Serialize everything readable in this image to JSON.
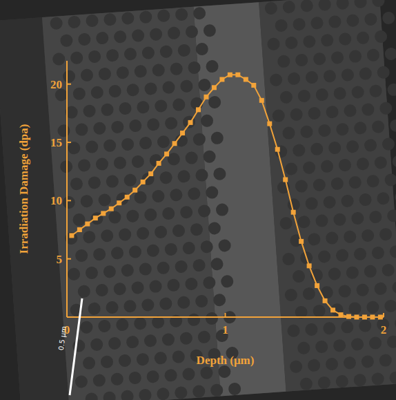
{
  "chart_data": {
    "type": "line",
    "x_label": "Depth (μm)",
    "y_label": "Irradiation Damage (dpa)",
    "annotations": [
      "0.5 μm"
    ],
    "x": [
      0.03,
      0.08,
      0.13,
      0.18,
      0.23,
      0.28,
      0.33,
      0.38,
      0.43,
      0.48,
      0.53,
      0.58,
      0.63,
      0.68,
      0.73,
      0.78,
      0.83,
      0.88,
      0.93,
      0.98,
      1.03,
      1.08,
      1.13,
      1.18,
      1.23,
      1.28,
      1.33,
      1.38,
      1.43,
      1.48,
      1.53,
      1.58,
      1.63,
      1.68,
      1.73,
      1.78,
      1.83,
      1.88,
      1.93,
      1.98
    ],
    "values": [
      7.0,
      7.5,
      8.0,
      8.5,
      8.9,
      9.3,
      9.8,
      10.3,
      10.9,
      11.6,
      12.3,
      13.2,
      14.0,
      14.9,
      15.8,
      16.7,
      17.8,
      18.9,
      19.7,
      20.4,
      20.8,
      20.8,
      20.4,
      19.9,
      18.6,
      16.6,
      14.4,
      11.8,
      9.0,
      6.5,
      4.4,
      2.7,
      1.4,
      0.6,
      0.2,
      0.05,
      0,
      0,
      0,
      0
    ],
    "color": "#f2a33a",
    "marker": "square",
    "line_style": "solid",
    "xlim": [
      0,
      2
    ],
    "xticks": [
      0,
      1,
      2
    ],
    "ylim": [
      0,
      22
    ],
    "yticks": [
      5,
      10,
      15,
      20
    ],
    "grid": false
  }
}
